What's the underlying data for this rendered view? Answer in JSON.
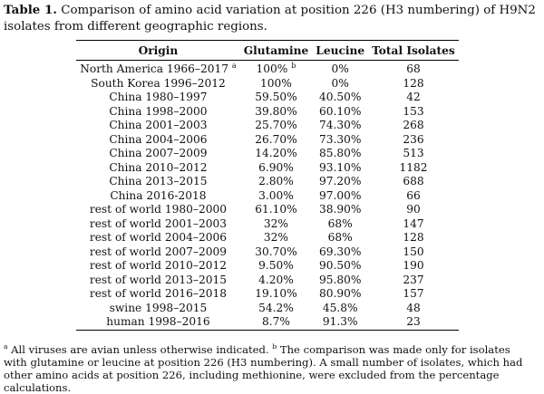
{
  "caption": {
    "label": "Table 1.",
    "text": " Comparison of amino acid variation at position 226 (H3 numbering) of H9N2 isolates from different geographic regions."
  },
  "table": {
    "headers": [
      "Origin",
      "Glutamine",
      "Leucine",
      "Total Isolates"
    ],
    "rows": [
      {
        "origin": "North America 1966–2017",
        "origin_sup": "a",
        "glutamine": "100%",
        "glutamine_sup": "b",
        "leucine": "0%",
        "total": "68"
      },
      {
        "origin": "South Korea 1996–2012",
        "glutamine": "100%",
        "leucine": "0%",
        "total": "128"
      },
      {
        "origin": "China 1980–1997",
        "glutamine": "59.50%",
        "leucine": "40.50%",
        "total": "42"
      },
      {
        "origin": "China 1998–2000",
        "glutamine": "39.80%",
        "leucine": "60.10%",
        "total": "153"
      },
      {
        "origin": "China 2001–2003",
        "glutamine": "25.70%",
        "leucine": "74.30%",
        "total": "268"
      },
      {
        "origin": "China 2004–2006",
        "glutamine": "26.70%",
        "leucine": "73.30%",
        "total": "236"
      },
      {
        "origin": "China 2007–2009",
        "glutamine": "14.20%",
        "leucine": "85.80%",
        "total": "513"
      },
      {
        "origin": "China 2010–2012",
        "glutamine": "6.90%",
        "leucine": "93.10%",
        "total": "1182"
      },
      {
        "origin": "China 2013–2015",
        "glutamine": "2.80%",
        "leucine": "97.20%",
        "total": "688"
      },
      {
        "origin": "China 2016-2018",
        "glutamine": "3.00%",
        "leucine": "97.00%",
        "total": "66"
      },
      {
        "origin": "rest of world 1980–2000",
        "glutamine": "61.10%",
        "leucine": "38.90%",
        "total": "90"
      },
      {
        "origin": "rest of world 2001–2003",
        "glutamine": "32%",
        "leucine": "68%",
        "total": "147"
      },
      {
        "origin": "rest of world 2004–2006",
        "glutamine": "32%",
        "leucine": "68%",
        "total": "128"
      },
      {
        "origin": "rest of world 2007–2009",
        "glutamine": "30.70%",
        "leucine": "69.30%",
        "total": "150"
      },
      {
        "origin": "rest of world 2010–2012",
        "glutamine": "9.50%",
        "leucine": "90.50%",
        "total": "190"
      },
      {
        "origin": "rest of world 2013–2015",
        "glutamine": "4.20%",
        "leucine": "95.80%",
        "total": "237"
      },
      {
        "origin": "rest of world 2016–2018",
        "glutamine": "19.10%",
        "leucine": "80.90%",
        "total": "157"
      },
      {
        "origin": "swine 1998–2015",
        "glutamine": "54.2%",
        "leucine": "45.8%",
        "total": "48"
      },
      {
        "origin": "human 1998–2016",
        "glutamine": "8.7%",
        "leucine": "91.3%",
        "total": "23"
      }
    ]
  },
  "footnotes": {
    "a_marker": "a",
    "a_text": " All viruses are avian unless otherwise indicated. ",
    "b_marker": "b",
    "b_text": " The comparison was made only for isolates with glutamine or leucine at position 226 (H3 numbering). A small number of isolates, which had other amino acids at position 226, including methionine, were excluded from the percentage calculations."
  }
}
